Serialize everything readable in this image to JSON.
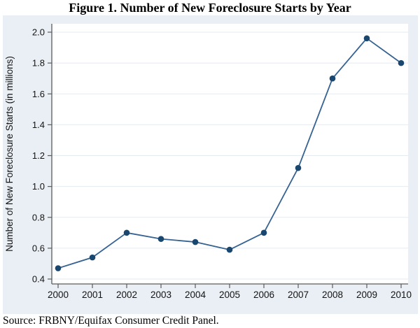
{
  "figure": {
    "title": "Figure 1. Number of New Foreclosure Starts by Year",
    "source_note": "Source: FRBNY/Equifax Consumer Credit Panel."
  },
  "chart_data": {
    "type": "line",
    "title": "Figure 1. Number of New Foreclosure Starts by Year",
    "x": [
      2000,
      2001,
      2002,
      2003,
      2004,
      2005,
      2006,
      2007,
      2008,
      2009,
      2010
    ],
    "series": [
      {
        "name": "New Foreclosure Starts",
        "values": [
          0.47,
          0.54,
          0.7,
          0.66,
          0.64,
          0.59,
          0.7,
          1.12,
          1.7,
          1.96,
          1.8
        ]
      }
    ],
    "xlabel": "",
    "ylabel": "Number of New Foreclosure Starts (in millions)",
    "ylim": [
      0.4,
      2.0
    ],
    "yticks": [
      0.4,
      0.6,
      0.8,
      1.0,
      1.2,
      1.4,
      1.6,
      1.8,
      2.0
    ],
    "grid": true,
    "legend": "none",
    "marker": "circle",
    "source": "Source: FRBNY/Equifax Consumer Credit Panel.",
    "colors": {
      "line": "#356292",
      "marker": "#1a476f",
      "plot_bg": "#ffffff",
      "outer_bg": "#e9eff4",
      "grid": "#e4ebf1",
      "axis": "#5b5b5b",
      "text": "#141414"
    }
  }
}
